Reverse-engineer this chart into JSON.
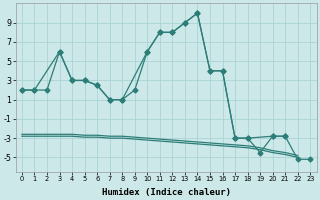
{
  "line_color": "#2d7d78",
  "bg_color": "#cce8e8",
  "grid_color": "#aad4d4",
  "yticks": [
    -5,
    -3,
    -1,
    1,
    3,
    5,
    7,
    9
  ],
  "ylim": [
    -6.5,
    11.0
  ],
  "xlim": [
    -0.5,
    23.5
  ],
  "xlabel": "Humidex (Indice chaleur)",
  "markersize": 2.5,
  "xa": [
    0,
    1,
    3,
    4,
    5,
    6,
    7,
    8,
    9,
    10,
    11,
    12,
    13,
    14,
    15,
    16,
    17,
    18,
    19,
    20,
    21,
    22,
    23
  ],
  "ya": [
    2,
    2,
    6,
    3,
    3,
    2.5,
    1,
    1,
    2,
    6,
    8,
    8,
    9,
    10,
    4,
    4,
    -3,
    -3,
    -4.5,
    -2.8,
    -2.8,
    -5.2,
    -5.2
  ],
  "xb": [
    0,
    1,
    2,
    3,
    4,
    5,
    6,
    7,
    8,
    10,
    11,
    12,
    13,
    14,
    15,
    16,
    17,
    18,
    20,
    21
  ],
  "yb": [
    2,
    2,
    2,
    6,
    3,
    3,
    2.5,
    1,
    1,
    6,
    8,
    8,
    9,
    10,
    4,
    4,
    -3,
    -3,
    -2.8,
    -2.8
  ],
  "xc": [
    0,
    1,
    2,
    3,
    4,
    5,
    6,
    7,
    8,
    9,
    10,
    11,
    12,
    13,
    14,
    15,
    16,
    17,
    18,
    19,
    20,
    21,
    22
  ],
  "yc": [
    -2.8,
    -2.8,
    -2.8,
    -2.8,
    -2.8,
    -2.9,
    -2.9,
    -3.0,
    -3.0,
    -3.1,
    -3.2,
    -3.3,
    -3.4,
    -3.5,
    -3.6,
    -3.7,
    -3.8,
    -3.9,
    -4.0,
    -4.2,
    -4.5,
    -4.7,
    -5.0
  ],
  "xd": [
    0,
    1,
    2,
    3,
    4,
    5,
    6,
    7,
    8,
    9,
    10,
    11,
    12,
    13,
    14,
    15,
    16,
    17,
    18,
    19,
    20,
    21,
    22
  ],
  "yd": [
    -2.6,
    -2.6,
    -2.6,
    -2.6,
    -2.6,
    -2.7,
    -2.7,
    -2.8,
    -2.8,
    -2.9,
    -3.0,
    -3.1,
    -3.2,
    -3.3,
    -3.4,
    -3.5,
    -3.6,
    -3.7,
    -3.8,
    -4.0,
    -4.3,
    -4.5,
    -4.8
  ]
}
